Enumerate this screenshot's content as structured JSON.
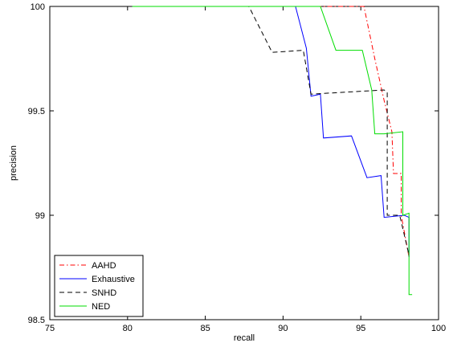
{
  "chart_data": {
    "type": "line",
    "title": "",
    "xlabel": "recall",
    "ylabel": "precision",
    "xlim": [
      75,
      100
    ],
    "ylim": [
      98.5,
      100
    ],
    "xticks": [
      75,
      80,
      85,
      90,
      95,
      100
    ],
    "yticks": [
      98.5,
      99,
      99.5,
      100
    ],
    "grid": false,
    "legend_position": "bottom-left",
    "series": [
      {
        "name": "AAHD",
        "color": "#ff0000",
        "dash": "dash-dot",
        "x": [
          80.3,
          95.2,
          95.9,
          96.5,
          97.0,
          97.1,
          97.6,
          97.6,
          98.1
        ],
        "y": [
          100,
          100,
          99.75,
          99.55,
          99.4,
          99.2,
          99.2,
          99.0,
          98.8
        ]
      },
      {
        "name": "Exhaustive",
        "color": "#0000ff",
        "dash": "solid",
        "x": [
          80.3,
          90.8,
          91.5,
          91.8,
          92.4,
          92.6,
          94.4,
          95.4,
          96.3,
          96.5,
          97.8,
          98.1,
          98.1
        ],
        "y": [
          100,
          100,
          99.8,
          99.57,
          99.58,
          99.37,
          99.38,
          99.18,
          99.19,
          98.99,
          99.0,
          98.99,
          98.8
        ]
      },
      {
        "name": "SNHD",
        "color": "#000000",
        "dash": "dashed",
        "x": [
          80.3,
          87.8,
          89.3,
          91.3,
          91.8,
          96.5,
          96.7,
          96.7,
          97.5,
          98.1
        ],
        "y": [
          100,
          100,
          99.78,
          99.79,
          99.58,
          99.6,
          99.59,
          99.0,
          99.0,
          98.81
        ]
      },
      {
        "name": "NED",
        "color": "#00dd00",
        "dash": "solid",
        "x": [
          80.3,
          92.4,
          93.4,
          95.1,
          95.7,
          95.9,
          96.5,
          97.7,
          97.7,
          98.1,
          98.1,
          98.3
        ],
        "y": [
          100,
          100,
          99.79,
          99.79,
          99.6,
          99.39,
          99.39,
          99.4,
          99.0,
          99.01,
          98.62,
          98.62
        ]
      }
    ]
  }
}
